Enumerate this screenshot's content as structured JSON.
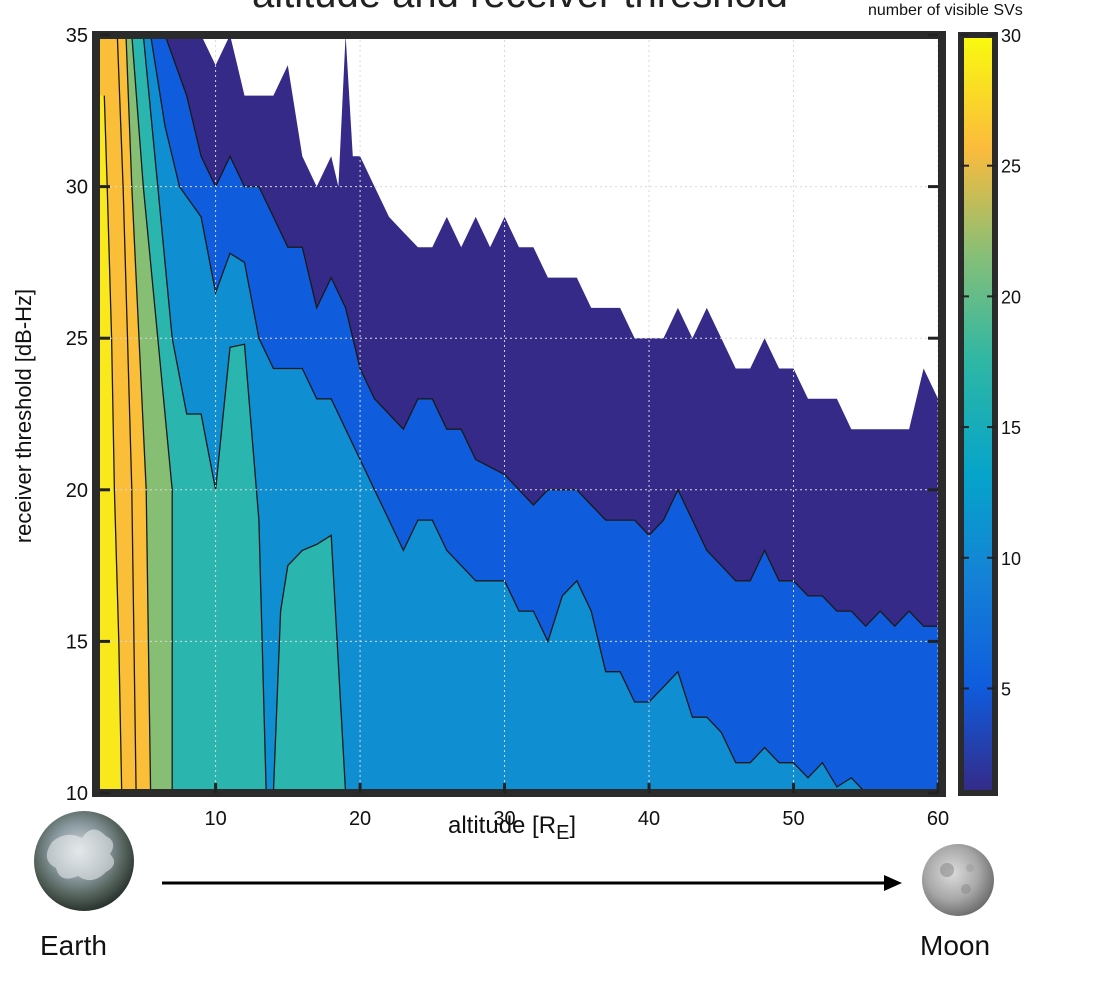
{
  "chart_data": {
    "type": "contour",
    "title": "altitude and receiver threshold",
    "xlabel": "altitude [R",
    "xlabel_sub": "E",
    "xlabel_close": "]",
    "ylabel": "receiver threshold [dB-Hz]",
    "colorbar_label": "number of visible SVs",
    "xlim": [
      2,
      60
    ],
    "ylim": [
      10,
      35
    ],
    "x_ticks": [
      10,
      20,
      30,
      40,
      50,
      60
    ],
    "y_ticks": [
      10,
      15,
      20,
      25,
      30,
      35
    ],
    "colorbar_range": [
      1,
      30
    ],
    "colorbar_ticks": [
      5,
      10,
      15,
      20,
      25,
      30
    ],
    "grid": true,
    "colormap": "parula",
    "levels": [
      {
        "min_svs": 1,
        "color": "#352a87"
      },
      {
        "min_svs": 4,
        "color": "#0f5cdd"
      },
      {
        "min_svs": 8,
        "color": "#0f8fd2"
      },
      {
        "min_svs": 12,
        "color": "#2ab5ae"
      },
      {
        "min_svs": 16,
        "color": "#86bf74"
      },
      {
        "min_svs": 20,
        "color": "#c6b94a"
      },
      {
        "min_svs": 24,
        "color": "#fbbe38"
      },
      {
        "min_svs": 27,
        "color": "#f9e91c"
      }
    ],
    "boundaries": [
      {
        "name": "visibility edge",
        "points": [
          [
            9,
            35
          ],
          [
            10,
            34
          ],
          [
            11,
            35
          ],
          [
            11.5,
            34
          ],
          [
            12,
            33
          ],
          [
            13,
            33
          ],
          [
            14,
            33
          ],
          [
            15,
            34
          ],
          [
            16,
            31
          ],
          [
            17,
            30
          ],
          [
            18,
            31
          ],
          [
            18.5,
            30
          ],
          [
            19,
            35
          ],
          [
            19.5,
            31
          ],
          [
            20,
            31
          ],
          [
            21,
            30
          ],
          [
            22,
            29
          ],
          [
            23,
            28.5
          ],
          [
            24,
            28
          ],
          [
            25,
            28
          ],
          [
            26,
            29
          ],
          [
            27,
            28
          ],
          [
            28,
            29
          ],
          [
            29,
            28
          ],
          [
            30,
            29
          ],
          [
            31,
            28
          ],
          [
            32,
            28
          ],
          [
            33,
            27
          ],
          [
            34,
            27
          ],
          [
            35,
            27
          ],
          [
            36,
            26
          ],
          [
            37,
            26
          ],
          [
            38,
            26
          ],
          [
            39,
            25
          ],
          [
            40,
            25
          ],
          [
            41,
            25
          ],
          [
            42,
            26
          ],
          [
            43,
            25
          ],
          [
            44,
            26
          ],
          [
            45,
            25
          ],
          [
            46,
            24
          ],
          [
            47,
            24
          ],
          [
            48,
            25
          ],
          [
            49,
            24
          ],
          [
            50,
            24
          ],
          [
            51,
            23
          ],
          [
            52,
            23
          ],
          [
            53,
            23
          ],
          [
            54,
            22
          ],
          [
            55,
            22
          ],
          [
            56,
            22
          ],
          [
            57,
            22
          ],
          [
            58,
            22
          ],
          [
            59,
            24
          ],
          [
            60,
            23
          ]
        ]
      },
      {
        "name": "3 SVs",
        "points": [
          [
            6.5,
            35
          ],
          [
            8,
            33
          ],
          [
            9,
            31
          ],
          [
            10,
            30
          ],
          [
            11,
            31
          ],
          [
            12,
            30
          ],
          [
            13,
            30
          ],
          [
            14,
            29
          ],
          [
            15,
            28
          ],
          [
            16,
            28
          ],
          [
            17,
            26
          ],
          [
            18,
            27
          ],
          [
            19,
            26
          ],
          [
            20,
            24
          ],
          [
            21,
            23
          ],
          [
            22,
            22.5
          ],
          [
            23,
            22
          ],
          [
            24,
            23
          ],
          [
            25,
            23
          ],
          [
            26,
            22
          ],
          [
            27,
            22
          ],
          [
            28,
            21
          ],
          [
            30,
            20.5
          ],
          [
            31,
            20
          ],
          [
            32,
            19.5
          ],
          [
            33,
            20
          ],
          [
            34,
            20
          ],
          [
            35,
            20
          ],
          [
            36,
            19.5
          ],
          [
            37,
            19
          ],
          [
            38,
            19
          ],
          [
            39,
            19
          ],
          [
            40,
            18.5
          ],
          [
            41,
            19
          ],
          [
            42,
            20
          ],
          [
            43,
            19
          ],
          [
            44,
            18
          ],
          [
            45,
            17.5
          ],
          [
            46,
            17
          ],
          [
            47,
            17
          ],
          [
            48,
            18
          ],
          [
            49,
            17
          ],
          [
            50,
            17
          ],
          [
            51,
            16.5
          ],
          [
            52,
            16.5
          ],
          [
            53,
            16
          ],
          [
            54,
            16
          ],
          [
            55,
            15.5
          ],
          [
            56,
            16
          ],
          [
            57,
            15.5
          ],
          [
            58,
            16
          ],
          [
            59,
            15.5
          ],
          [
            60,
            15.5
          ]
        ]
      },
      {
        "name": "7 SVs",
        "points": [
          [
            5.5,
            35
          ],
          [
            6.5,
            32
          ],
          [
            7.5,
            30
          ],
          [
            9,
            29
          ],
          [
            10,
            26.5
          ],
          [
            11,
            27.8
          ],
          [
            12,
            27.5
          ],
          [
            13,
            25
          ],
          [
            14,
            24
          ],
          [
            15,
            24
          ],
          [
            16,
            24
          ],
          [
            17,
            23
          ],
          [
            18,
            23
          ],
          [
            19,
            22
          ],
          [
            20,
            21
          ],
          [
            21,
            20
          ],
          [
            22,
            19
          ],
          [
            23,
            18
          ],
          [
            24,
            19
          ],
          [
            25,
            19
          ],
          [
            26,
            18
          ],
          [
            27,
            17.5
          ],
          [
            28,
            17
          ],
          [
            29,
            17
          ],
          [
            30,
            17
          ],
          [
            31,
            16
          ],
          [
            32,
            16
          ],
          [
            33,
            15
          ],
          [
            34,
            16.5
          ],
          [
            35,
            17
          ],
          [
            36,
            16
          ],
          [
            37,
            14
          ],
          [
            38,
            14
          ],
          [
            39,
            13
          ],
          [
            40,
            13
          ],
          [
            41,
            13.5
          ],
          [
            42,
            14
          ],
          [
            43,
            12.5
          ],
          [
            44,
            12.5
          ],
          [
            45,
            12
          ],
          [
            46,
            11
          ],
          [
            47,
            11
          ],
          [
            48,
            11.5
          ],
          [
            49,
            11
          ],
          [
            50,
            11
          ],
          [
            51,
            10.5
          ],
          [
            52,
            11
          ],
          [
            53,
            10.2
          ],
          [
            54,
            10.5
          ],
          [
            55,
            10
          ],
          [
            60,
            10
          ]
        ]
      },
      {
        "name": "11 SVs",
        "points": [
          [
            5,
            35
          ],
          [
            6,
            30
          ],
          [
            7,
            25
          ],
          [
            8,
            22.5
          ],
          [
            9,
            22.5
          ],
          [
            10,
            20
          ],
          [
            11,
            24.7
          ],
          [
            12,
            24.8
          ],
          [
            13,
            19
          ],
          [
            13.5,
            10
          ]
        ]
      },
      {
        "name": "11 SVs island",
        "points": [
          [
            14,
            10
          ],
          [
            14.5,
            16
          ],
          [
            15,
            17.5
          ],
          [
            16,
            18
          ],
          [
            17,
            18.2
          ],
          [
            18,
            18.5
          ],
          [
            19,
            10
          ]
        ]
      },
      {
        "name": "15 SVs",
        "points": [
          [
            4.2,
            35
          ],
          [
            5,
            30
          ],
          [
            6,
            25
          ],
          [
            7,
            20
          ],
          [
            7,
            10
          ]
        ]
      },
      {
        "name": "19 SVs",
        "points": [
          [
            3.8,
            35
          ],
          [
            4.2,
            30
          ],
          [
            4.7,
            25
          ],
          [
            5.2,
            20
          ],
          [
            5.5,
            10
          ]
        ]
      },
      {
        "name": "23 SVs",
        "points": [
          [
            3.2,
            35
          ],
          [
            3.6,
            30
          ],
          [
            3.9,
            25
          ],
          [
            4.2,
            20
          ],
          [
            4.5,
            10
          ]
        ]
      },
      {
        "name": "27 SVs",
        "points": [
          [
            2.3,
            33
          ],
          [
            2.5,
            30
          ],
          [
            2.8,
            25
          ],
          [
            3,
            20
          ],
          [
            3.3,
            15
          ],
          [
            3.5,
            10
          ]
        ]
      }
    ]
  },
  "annotations": {
    "earth_label": "Earth",
    "moon_label": "Moon"
  },
  "colors": {
    "axis_frame": "#2b2b2b",
    "grid": "#d9d9d9",
    "arrow": "#000000"
  }
}
